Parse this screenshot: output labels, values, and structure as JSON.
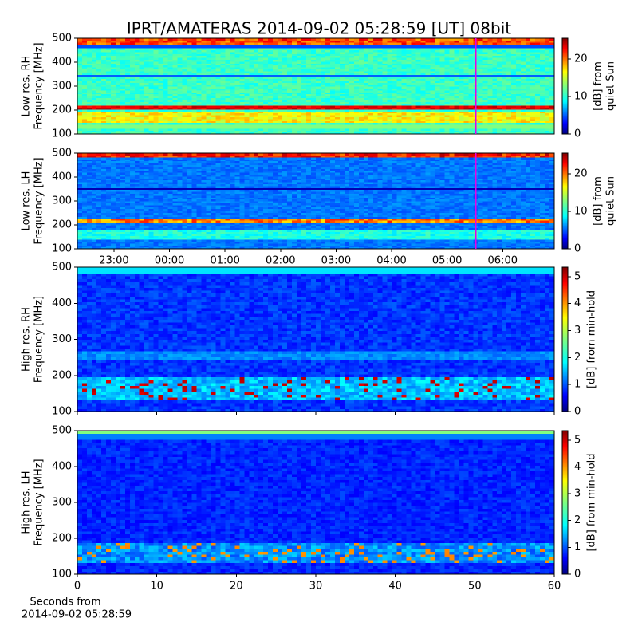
{
  "chart_data": [
    {
      "type": "spectrogram",
      "title": "IPRT/AMATERAS 2014-09-02 05:28:59 [UT]   08bit",
      "ylabel": [
        "Low res. RH",
        "Frequency [MHz]"
      ],
      "ylim": [
        100,
        500
      ],
      "yticks": [
        100,
        200,
        300,
        400,
        500
      ],
      "xlim": [
        -1.66,
        6.93
      ],
      "cursor_x": 5.51,
      "cursor_color": "#e600e6",
      "colorbar_label": [
        "[dB] from",
        "quiet Sun"
      ],
      "clim": [
        0,
        25.5
      ],
      "cticks": [
        0,
        10,
        20
      ]
    },
    {
      "type": "spectrogram",
      "ylabel": [
        "Low res. LH",
        "Frequency [MHz]"
      ],
      "ylim": [
        100,
        500
      ],
      "yticks": [
        100,
        200,
        300,
        400,
        500
      ],
      "xlim": [
        -1.66,
        6.93
      ],
      "xticks": [
        {
          "value": -1,
          "label": "23:00"
        },
        {
          "value": 0,
          "label": "00:00"
        },
        {
          "value": 1,
          "label": "01:00"
        },
        {
          "value": 2,
          "label": "02:00"
        },
        {
          "value": 3,
          "label": "03:00"
        },
        {
          "value": 4,
          "label": "04:00"
        },
        {
          "value": 5,
          "label": "05:00"
        },
        {
          "value": 6,
          "label": "06:00"
        }
      ],
      "cursor_x": 5.51,
      "cursor_color": "#e600e6",
      "colorbar_label": [
        "[dB] from",
        "quiet Sun"
      ],
      "clim": [
        0,
        25.5
      ],
      "cticks": [
        0,
        10,
        20
      ]
    },
    {
      "type": "spectrogram",
      "ylabel": [
        "High res. RH",
        "Frequency [MHz]"
      ],
      "ylim": [
        100,
        500
      ],
      "yticks": [
        100,
        200,
        300,
        400,
        500
      ],
      "xlim": [
        0,
        60
      ],
      "xticks": [
        0,
        10,
        20,
        30,
        40,
        50,
        60
      ],
      "show_xticklabels": false,
      "colorbar_label": [
        "[dB] from min-hold"
      ],
      "clim": [
        0,
        5.35
      ],
      "cticks": [
        0,
        1,
        2,
        3,
        4,
        5
      ]
    },
    {
      "type": "spectrogram",
      "ylabel": [
        "High res. LH",
        "Frequency [MHz]"
      ],
      "ylim": [
        100,
        500
      ],
      "yticks": [
        100,
        200,
        300,
        400,
        500
      ],
      "xlim": [
        0,
        60
      ],
      "xticks": [
        0,
        10,
        20,
        30,
        40,
        50,
        60
      ],
      "show_xticklabels": true,
      "xlabel": [
        "Seconds from",
        "2014-09-02 05:28:59"
      ],
      "colorbar_label": [
        "[dB] from min-hold"
      ],
      "clim": [
        0,
        5.35
      ],
      "cticks": [
        0,
        1,
        2,
        3,
        4,
        5
      ]
    }
  ]
}
